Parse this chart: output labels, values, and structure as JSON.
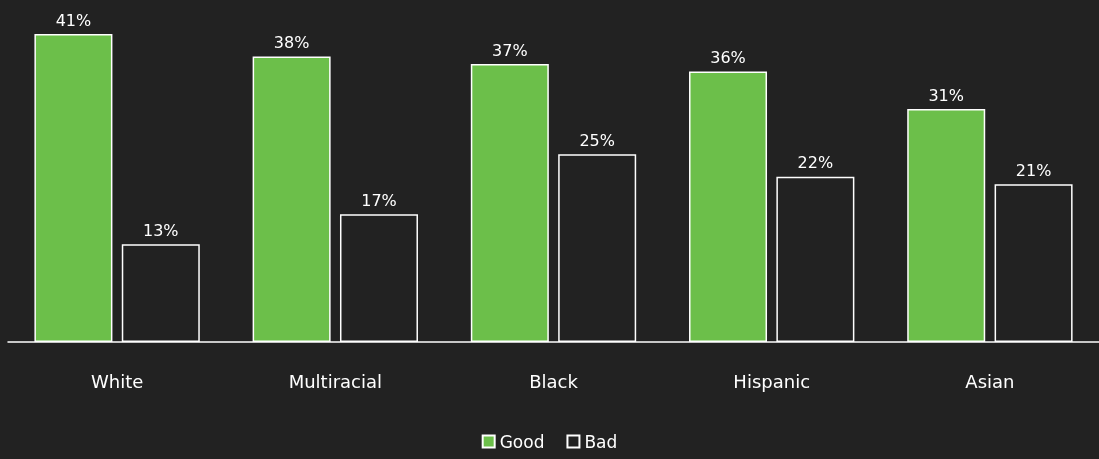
{
  "chart_data": {
    "type": "bar",
    "categories": [
      "White",
      "Multiracial",
      "Black",
      "Hispanic",
      "Asian"
    ],
    "series": [
      {
        "name": "Good",
        "color": "#6cbf4a",
        "values": [
          41,
          38,
          37,
          36,
          31
        ],
        "value_labels": [
          "41%",
          "38%",
          "37%",
          "36%",
          "31%"
        ]
      },
      {
        "name": "Bad",
        "color": "#222222",
        "values": [
          13,
          17,
          25,
          22,
          21
        ],
        "value_labels": [
          "13%",
          "17%",
          "25%",
          "22%",
          "21%"
        ]
      }
    ],
    "legend": "bottom",
    "grid": false
  }
}
